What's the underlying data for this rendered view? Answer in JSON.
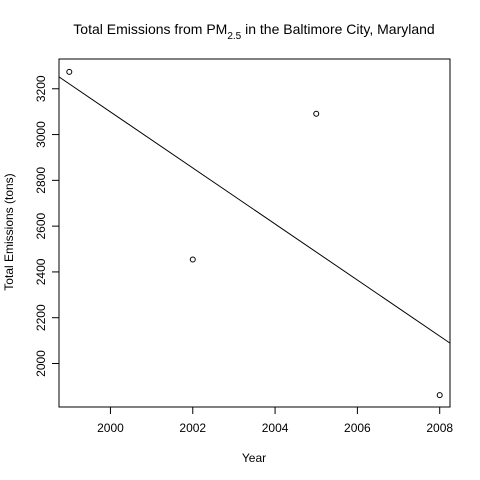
{
  "chart_data": {
    "type": "scatter",
    "title": {
      "prefix": "Total Emissions from PM",
      "subscript": "2.5",
      "suffix": " in the Baltimore City, Maryland"
    },
    "xlabel": "Year",
    "ylabel": "Total Emissions (tons)",
    "xlim": [
      1998.75,
      2008.25
    ],
    "ylim": [
      1810,
      3330
    ],
    "x_ticks": [
      2000,
      2002,
      2004,
      2006,
      2008
    ],
    "y_ticks": [
      2000,
      2200,
      2400,
      2600,
      2800,
      3000,
      3200
    ],
    "points": [
      {
        "x": 1999,
        "y": 3274
      },
      {
        "x": 2002,
        "y": 2454
      },
      {
        "x": 2005,
        "y": 3091
      },
      {
        "x": 2008,
        "y": 1862
      }
    ],
    "fit_line": {
      "type": "linear",
      "x": [
        1998.75,
        2008.25
      ],
      "y": [
        3252,
        2089
      ]
    },
    "grid": false,
    "legend": "none",
    "colors": {
      "points": "#000000",
      "line": "#000000",
      "background": "#ffffff"
    }
  }
}
